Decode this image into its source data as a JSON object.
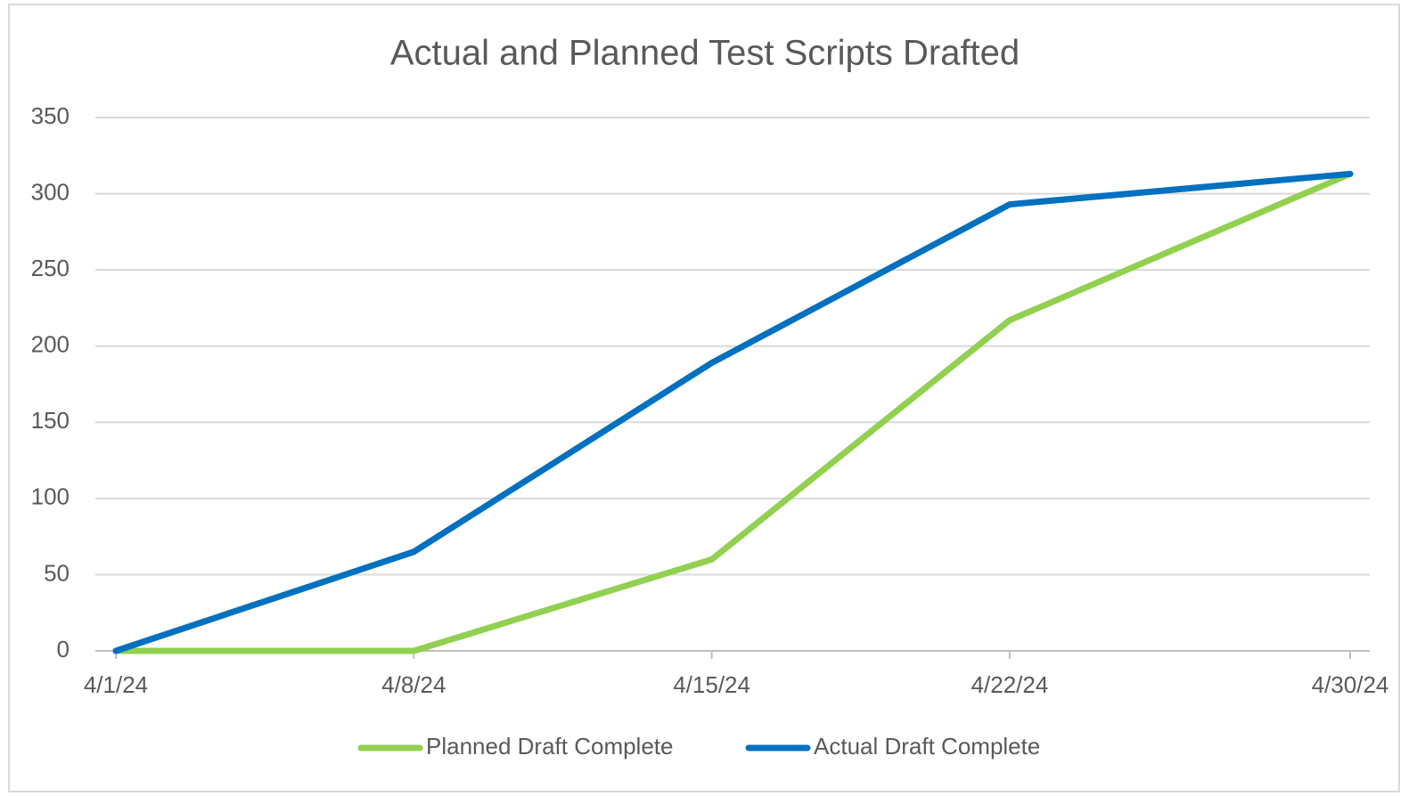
{
  "chart_data": {
    "type": "line",
    "title": "Actual and Planned Test Scripts Drafted",
    "x": [
      "4/1/24",
      "4/8/24",
      "4/15/24",
      "4/22/24",
      "4/30/24"
    ],
    "xticks": [
      "4/1/24",
      "4/8/24",
      "4/15/24",
      "4/22/24",
      "4/30/24"
    ],
    "series": [
      {
        "name": "Planned Draft Complete",
        "color": "#92d050",
        "values": [
          0,
          0,
          60,
          217,
          313
        ]
      },
      {
        "name": "Actual Draft Complete",
        "color": "#0070c0",
        "values": [
          0,
          65,
          189,
          293,
          313
        ]
      }
    ],
    "ylim": [
      0,
      350
    ],
    "yticks": [
      0,
      50,
      100,
      150,
      200,
      250,
      300,
      350
    ],
    "grid": true,
    "legend": "bottom"
  }
}
